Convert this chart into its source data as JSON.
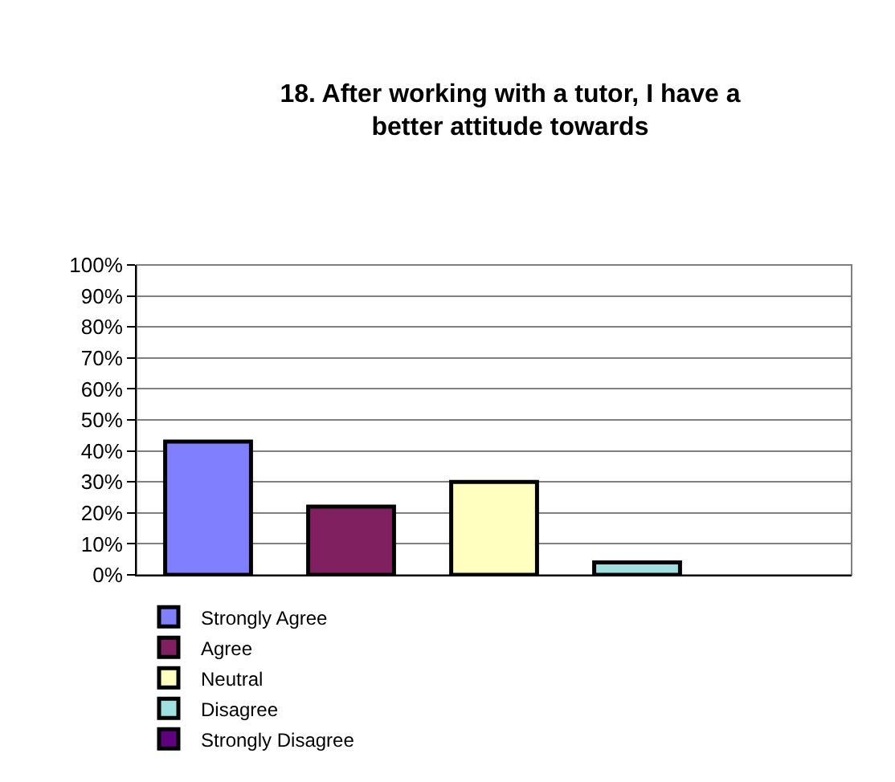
{
  "chart_data": {
    "type": "bar",
    "title": "18. After working with a tutor, I have a\nbetter attitude towards",
    "categories": [
      null,
      null,
      null,
      null,
      null
    ],
    "series": [
      {
        "name": "Strongly Agree",
        "color": "#8080ff",
        "values": [
          43,
          null,
          null,
          null,
          null
        ]
      },
      {
        "name": "Agree",
        "color": "#802060",
        "values": [
          null,
          22,
          null,
          null,
          null
        ]
      },
      {
        "name": "Neutral",
        "color": "#ffffc0",
        "values": [
          null,
          null,
          30,
          null,
          null
        ]
      },
      {
        "name": "Disagree",
        "color": "#a0e0e0",
        "values": [
          null,
          null,
          null,
          4,
          null
        ]
      },
      {
        "name": "Strongly Disagree",
        "color": "#600080",
        "values": [
          null,
          null,
          null,
          null,
          null
        ]
      }
    ],
    "ylim": [
      0,
      100
    ],
    "yticks": [
      {
        "value": 0,
        "label": "0%"
      },
      {
        "value": 10,
        "label": "10%"
      },
      {
        "value": 20,
        "label": "20%"
      },
      {
        "value": 30,
        "label": "30%"
      },
      {
        "value": 40,
        "label": "40%"
      },
      {
        "value": 50,
        "label": "50%"
      },
      {
        "value": 60,
        "label": "60%"
      },
      {
        "value": 70,
        "label": "70%"
      },
      {
        "value": 80,
        "label": "80%"
      },
      {
        "value": 90,
        "label": "90%"
      },
      {
        "value": 100,
        "label": "100%"
      }
    ],
    "grid": "y",
    "legend": "bottom left"
  }
}
